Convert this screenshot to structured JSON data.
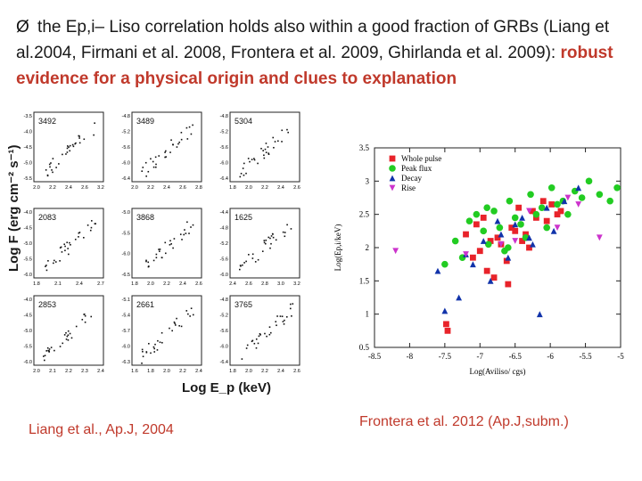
{
  "bullet": {
    "arrow": "Ø",
    "text": " the Ep,i– Liso  correlation holds also within a good fraction of GRBs (Liang et al.2004, Firmani et al. 2008, Frontera et al. 2009, Ghirlanda et al. 2009): ",
    "highlight": "robust evidence for a physical origin and clues to explanation"
  },
  "left_figure": {
    "ylabel": "Log F (erg cm⁻² s⁻¹)",
    "xlabel": "Log E_p (keV)",
    "caption": "Liang et al., Ap.J, 2004",
    "panels": [
      {
        "id": "3492",
        "xticks": [
          "2.0",
          "2.2",
          "2.4",
          "2.6",
          "3.2"
        ],
        "yticks": [
          "-3.5",
          "-4.0",
          "-4.5",
          "-5.0",
          "-5.5"
        ]
      },
      {
        "id": "3489",
        "xticks": [
          "2.0",
          "2.2",
          "2.4",
          "2.6",
          "2.8"
        ],
        "yticks": [
          "-4.8",
          "-5.2",
          "-5.6",
          "-6.0",
          "-6.4"
        ]
      },
      {
        "id": "5304",
        "xticks": [
          "1.8",
          "2.0",
          "2.2",
          "2.4",
          "2.6"
        ],
        "yticks": [
          "-4.8",
          "-5.2",
          "-5.6",
          "-6.0",
          "-6.4"
        ]
      },
      {
        "id": "2083",
        "xticks": [
          "1.8",
          "2.1",
          "2.4",
          "2.7"
        ],
        "yticks": [
          "-4.0",
          "-4.5",
          "-5.0",
          "-5.5",
          "-6.0"
        ]
      },
      {
        "id": "3868",
        "xticks": [
          "1.8",
          "2.0",
          "2.2",
          "2.4",
          "2.6"
        ],
        "yticks": [
          "-5.0",
          "-5.5",
          "-6.0",
          "-6.5"
        ]
      },
      {
        "id": "1625",
        "xticks": [
          "2.4",
          "2.6",
          "2.8",
          "3.0",
          "3.2"
        ],
        "yticks": [
          "-4.4",
          "-4.8",
          "-5.2",
          "-5.6",
          "-6.0"
        ]
      },
      {
        "id": "2853",
        "xticks": [
          "2.0",
          "2.1",
          "2.2",
          "2.3",
          "2.4"
        ],
        "yticks": [
          "-4.0",
          "-4.5",
          "-5.0",
          "-5.5",
          "-6.0"
        ]
      },
      {
        "id": "2661",
        "xticks": [
          "1.6",
          "1.8",
          "2.0",
          "2.2",
          "2.4"
        ],
        "yticks": [
          "-5.1",
          "-5.4",
          "-5.7",
          "-6.0",
          "-6.3"
        ]
      },
      {
        "id": "3765",
        "xticks": [
          "1.8",
          "2.0",
          "2.2",
          "2.4",
          "2.6"
        ],
        "yticks": [
          "-4.8",
          "-5.2",
          "-5.6",
          "-6.0",
          "-6.4"
        ]
      }
    ]
  },
  "chart_data": {
    "type": "scatter",
    "xlabel": "Log(Aviliso/ cgs)",
    "ylabel": "Log(Ep,i/keV)",
    "xlim": [
      -8.5,
      -5
    ],
    "ylim": [
      0.5,
      3.5
    ],
    "xticks": [
      -8.5,
      -8,
      -7.5,
      -7,
      -6.5,
      -6,
      -5.5,
      -5
    ],
    "yticks": [
      0.5,
      1,
      1.5,
      2,
      2.5,
      3,
      3.5
    ],
    "xticklabels": [
      "-8.5",
      "-8",
      "-7.5",
      "-7",
      "-6.5",
      "-6",
      "-5.5",
      "-5"
    ],
    "yticklabels": [
      "0.5",
      "1",
      "1.5",
      "2",
      "2.5",
      "3",
      "3.5"
    ],
    "legend_position": "top-left",
    "series": [
      {
        "name": "Whole pulse",
        "color": "#e8232a",
        "marker": "square",
        "x": [
          -7.48,
          -7.46,
          -7.2,
          -7.1,
          -7.05,
          -6.95,
          -6.9,
          -6.85,
          -6.8,
          -6.75,
          -6.7,
          -6.62,
          -6.55,
          -6.5,
          -6.45,
          -6.4,
          -6.3,
          -6.25,
          -6.2,
          -6.1,
          -6.05,
          -5.98,
          -5.9,
          -5.85,
          -7.0,
          -6.6,
          -6.35
        ],
        "y": [
          0.85,
          0.75,
          2.2,
          1.85,
          2.35,
          2.45,
          1.65,
          2.1,
          1.55,
          2.15,
          2.05,
          1.8,
          2.3,
          2.25,
          2.6,
          2.1,
          2.0,
          2.55,
          2.45,
          2.7,
          2.4,
          2.65,
          2.5,
          2.55,
          1.95,
          1.45,
          2.2
        ]
      },
      {
        "name": "Peak flux",
        "color": "#22cc22",
        "marker": "circle",
        "x": [
          -7.5,
          -7.35,
          -7.25,
          -7.15,
          -7.05,
          -6.95,
          -6.88,
          -6.8,
          -6.72,
          -6.65,
          -6.58,
          -6.5,
          -6.42,
          -6.35,
          -6.28,
          -6.2,
          -6.12,
          -6.05,
          -5.98,
          -5.9,
          -5.82,
          -5.75,
          -5.65,
          -5.55,
          -5.45,
          -5.3,
          -5.15,
          -5.05,
          -6.6,
          -6.9
        ],
        "y": [
          1.75,
          2.1,
          1.85,
          2.4,
          2.5,
          2.25,
          2.05,
          2.55,
          2.3,
          1.95,
          2.7,
          2.45,
          2.35,
          2.15,
          2.8,
          2.5,
          2.6,
          2.3,
          2.9,
          2.65,
          2.7,
          2.5,
          2.85,
          2.75,
          3.0,
          2.8,
          2.7,
          2.9,
          2.0,
          2.6
        ]
      },
      {
        "name": "Decay",
        "color": "#1133aa",
        "marker": "triangle",
        "x": [
          -7.6,
          -7.5,
          -7.3,
          -7.1,
          -6.95,
          -6.85,
          -6.7,
          -6.6,
          -6.5,
          -6.4,
          -6.25,
          -6.15,
          -6.05,
          -5.95,
          -5.8,
          -5.6,
          -7.2,
          -6.75,
          -6.3
        ],
        "y": [
          1.65,
          1.05,
          1.25,
          1.75,
          2.1,
          1.5,
          2.2,
          1.85,
          2.35,
          2.45,
          2.05,
          1.0,
          2.6,
          2.25,
          2.7,
          2.9,
          1.9,
          2.4,
          2.15
        ]
      },
      {
        "name": "Rise",
        "color": "#cc33cc",
        "marker": "triangle-down",
        "x": [
          -8.2,
          -7.2,
          -6.7,
          -6.3,
          -5.9,
          -5.75,
          -5.6,
          -5.3,
          -6.5
        ],
        "y": [
          1.95,
          1.9,
          2.05,
          2.55,
          2.3,
          2.75,
          2.65,
          2.15,
          2.1
        ]
      }
    ]
  },
  "right_caption": "Frontera et al. 2012 (Ap.J,subm.)"
}
